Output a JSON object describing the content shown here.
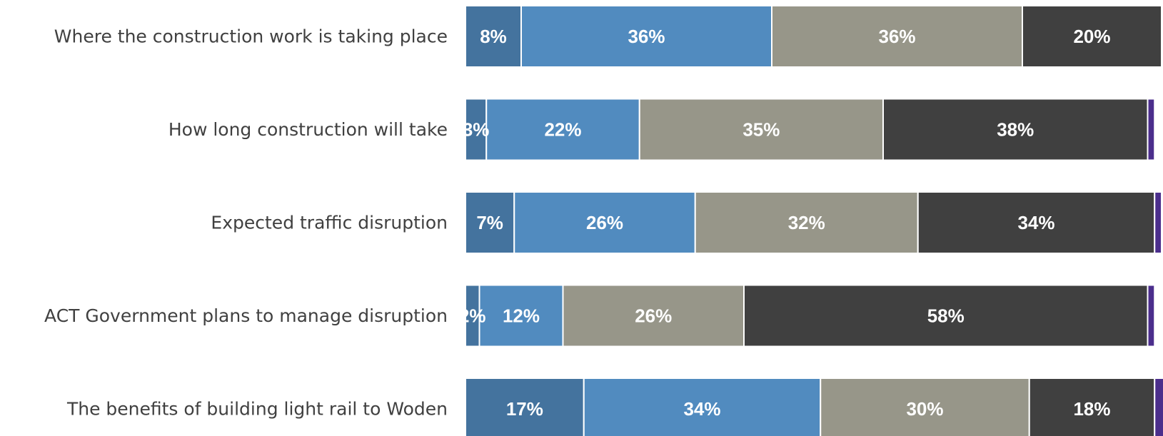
{
  "chart_data": {
    "type": "bar",
    "orientation": "horizontal",
    "stacked": true,
    "categories": [
      "Where the construction work is taking place",
      "How long construction will take",
      "Expected traffic disruption",
      "ACT Government plans to manage disruption",
      "The benefits of building light rail to Woden"
    ],
    "series": [
      {
        "color": "#44739e",
        "values": [
          8,
          3,
          7,
          2,
          17
        ]
      },
      {
        "color": "#518bbf",
        "values": [
          36,
          22,
          26,
          12,
          34
        ]
      },
      {
        "color": "#979689",
        "values": [
          36,
          35,
          32,
          26,
          30
        ]
      },
      {
        "color": "#404040",
        "values": [
          20,
          38,
          34,
          58,
          18
        ]
      },
      {
        "color": "#4b2e8c",
        "values": [
          0,
          1,
          1,
          1,
          2
        ]
      }
    ],
    "data_labels": [
      [
        "8%",
        "36%",
        "36%",
        "20%",
        ""
      ],
      [
        "3%",
        "22%",
        "35%",
        "38%",
        ""
      ],
      [
        "7%",
        "26%",
        "32%",
        "34%",
        ""
      ],
      [
        "2%",
        "12%",
        "26%",
        "58%",
        ""
      ],
      [
        "17%",
        "34%",
        "30%",
        "18%",
        ""
      ]
    ],
    "xlim": [
      0,
      100
    ],
    "grid": false,
    "legend": "none"
  }
}
